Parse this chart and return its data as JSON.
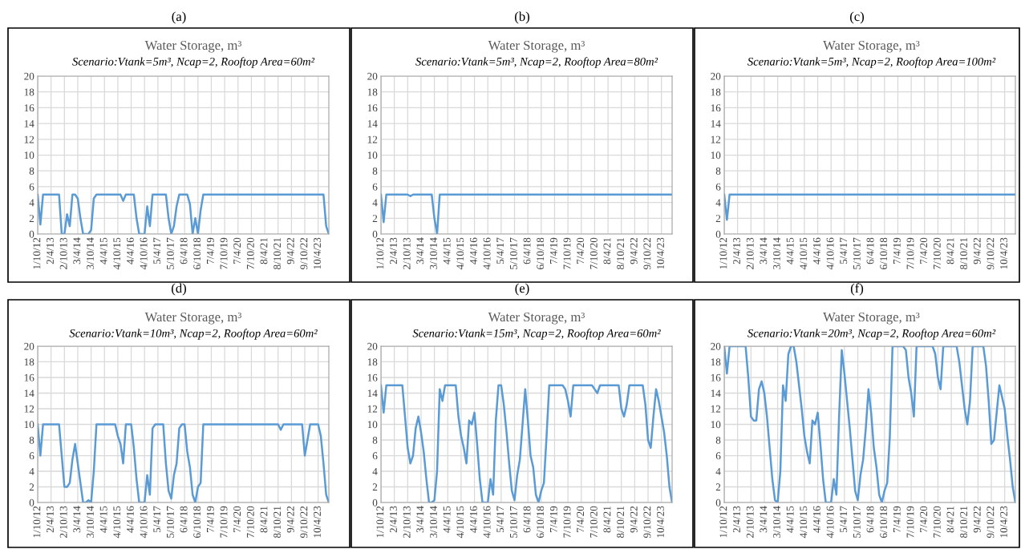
{
  "chart_data": [
    {
      "type": "line",
      "title": "Water Storage, m³",
      "subtitle": "Scenario:Vtank=5m³, Ncap=2, Rooftop Area=60m²",
      "annotations": [
        "(a)"
      ],
      "categories": [
        "1/10/12",
        null,
        null,
        null,
        null,
        "2/4/13",
        null,
        null,
        null,
        null,
        "2/10/13",
        null,
        null,
        null,
        null,
        "3/4/14",
        null,
        null,
        null,
        null,
        "3/10/14",
        null,
        null,
        null,
        null,
        "4/4/15",
        null,
        null,
        null,
        null,
        "4/10/15",
        null,
        null,
        null,
        null,
        "4/4/16",
        null,
        null,
        null,
        null,
        "4/10/16",
        null,
        null,
        null,
        null,
        "5/4/17",
        null,
        null,
        null,
        null,
        "5/10/17",
        null,
        null,
        null,
        null,
        "6/4/18",
        null,
        null,
        null,
        null,
        "6/10/18",
        null,
        null,
        null,
        null,
        "7/4/19",
        null,
        null,
        null,
        null,
        "7/10/19",
        null,
        null,
        null,
        null,
        "7/4/20",
        null,
        null,
        null,
        null,
        "7/10/20",
        null,
        null,
        null,
        null,
        "8/4/21",
        null,
        null,
        null,
        null,
        "8/10/21",
        null,
        null,
        null,
        null,
        "9/4/22",
        null,
        null,
        null,
        null,
        "9/10/22",
        null,
        null,
        null,
        null,
        "10/4/23",
        null,
        null,
        null,
        null
      ],
      "series": [
        {
          "color": "#5b9bd5",
          "values": [
            5,
            1.2,
            5,
            5,
            5,
            5,
            5,
            5,
            5,
            0,
            0,
            2.5,
            1,
            5,
            5,
            4.5,
            2,
            0,
            0,
            0,
            0.5,
            4.5,
            5,
            5,
            5,
            5,
            5,
            5,
            5,
            5,
            5,
            5,
            4.2,
            5,
            5,
            5,
            5,
            2,
            0,
            0,
            0,
            3.5,
            1,
            5,
            5,
            5,
            5,
            5,
            5,
            2,
            0,
            1,
            3.5,
            5,
            5,
            5,
            5,
            3.8,
            0,
            2,
            0,
            3,
            5,
            5,
            5,
            5,
            5,
            5,
            5,
            5,
            5,
            5,
            5,
            5,
            5,
            5,
            5,
            5,
            5,
            5,
            5,
            5,
            5,
            5,
            5,
            5,
            5,
            5,
            5,
            5,
            5,
            5,
            5,
            5,
            5,
            5,
            5,
            5,
            5,
            5,
            5,
            5,
            5,
            5,
            5,
            5,
            5,
            5,
            1,
            0
          ]
        }
      ],
      "ylim": [
        0,
        20
      ],
      "yticks": [
        0,
        2,
        4,
        6,
        8,
        10,
        12,
        14,
        16,
        18,
        20
      ],
      "grid": true
    },
    {
      "type": "line",
      "title": "Water Storage, m³",
      "subtitle": "Scenario:Vtank=5m³, Ncap=2, Rooftop Area=80m²",
      "annotations": [
        "(b)"
      ],
      "categories": [
        "1/10/12",
        null,
        null,
        null,
        null,
        "2/4/13",
        null,
        null,
        null,
        null,
        "2/10/13",
        null,
        null,
        null,
        null,
        "3/4/14",
        null,
        null,
        null,
        null,
        "3/10/14",
        null,
        null,
        null,
        null,
        "4/4/15",
        null,
        null,
        null,
        null,
        "4/10/15",
        null,
        null,
        null,
        null,
        "4/4/16",
        null,
        null,
        null,
        null,
        "4/10/16",
        null,
        null,
        null,
        null,
        "5/4/17",
        null,
        null,
        null,
        null,
        "5/10/17",
        null,
        null,
        null,
        null,
        "6/4/18",
        null,
        null,
        null,
        null,
        "6/10/18",
        null,
        null,
        null,
        null,
        "7/4/19",
        null,
        null,
        null,
        null,
        "7/10/19",
        null,
        null,
        null,
        null,
        "7/4/20",
        null,
        null,
        null,
        null,
        "7/10/20",
        null,
        null,
        null,
        null,
        "8/4/21",
        null,
        null,
        null,
        null,
        "8/10/21",
        null,
        null,
        null,
        null,
        "9/4/22",
        null,
        null,
        null,
        null,
        "9/10/22",
        null,
        null,
        null,
        null,
        "10/4/23",
        null,
        null,
        null,
        null
      ],
      "series": [
        {
          "color": "#5b9bd5",
          "values": [
            5,
            1.5,
            5,
            5,
            5,
            5,
            5,
            5,
            5,
            5,
            5,
            4.8,
            5,
            5,
            5,
            5,
            5,
            5,
            5,
            5,
            2,
            0,
            5,
            5,
            5,
            5,
            5,
            5,
            5,
            5,
            5,
            5,
            5,
            5,
            5,
            5,
            5,
            5,
            5,
            5,
            5,
            5,
            5,
            5,
            5,
            5,
            5,
            5,
            5,
            5,
            5,
            5,
            5,
            5,
            5,
            5,
            5,
            5,
            5,
            5,
            5,
            5,
            5,
            5,
            5,
            5,
            5,
            5,
            5,
            5,
            5,
            5,
            5,
            5,
            5,
            5,
            5,
            5,
            5,
            5,
            5,
            5,
            5,
            5,
            5,
            5,
            5,
            5,
            5,
            5,
            5,
            5,
            5,
            5,
            5,
            5,
            5,
            5,
            5,
            5,
            5,
            5,
            5,
            5,
            5,
            5,
            5,
            5,
            5,
            5
          ]
        }
      ],
      "ylim": [
        0,
        20
      ],
      "yticks": [
        0,
        2,
        4,
        6,
        8,
        10,
        12,
        14,
        16,
        18,
        20
      ],
      "grid": true
    },
    {
      "type": "line",
      "title": "Water Storage, m³",
      "subtitle": "Scenario:Vtank=5m³, Ncap=2, Rooftop Area=100m²",
      "annotations": [
        "(c)"
      ],
      "categories": [
        "1/10/12",
        null,
        null,
        null,
        null,
        "2/4/13",
        null,
        null,
        null,
        null,
        "2/10/13",
        null,
        null,
        null,
        null,
        "3/4/14",
        null,
        null,
        null,
        null,
        "3/10/14",
        null,
        null,
        null,
        null,
        "4/4/15",
        null,
        null,
        null,
        null,
        "4/10/15",
        null,
        null,
        null,
        null,
        "4/4/16",
        null,
        null,
        null,
        null,
        "4/10/16",
        null,
        null,
        null,
        null,
        "5/4/17",
        null,
        null,
        null,
        null,
        "5/10/17",
        null,
        null,
        null,
        null,
        "6/4/18",
        null,
        null,
        null,
        null,
        "6/10/18",
        null,
        null,
        null,
        null,
        "7/4/19",
        null,
        null,
        null,
        null,
        "7/10/19",
        null,
        null,
        null,
        null,
        "7/4/20",
        null,
        null,
        null,
        null,
        "7/10/20",
        null,
        null,
        null,
        null,
        "8/4/21",
        null,
        null,
        null,
        null,
        "8/10/21",
        null,
        null,
        null,
        null,
        "9/4/22",
        null,
        null,
        null,
        null,
        "9/10/22",
        null,
        null,
        null,
        null,
        "10/4/23",
        null,
        null,
        null,
        null
      ],
      "series": [
        {
          "color": "#5b9bd5",
          "values": [
            5,
            1.8,
            5,
            5,
            5,
            5,
            5,
            5,
            5,
            5,
            5,
            5,
            5,
            5,
            5,
            5,
            5,
            5,
            5,
            5,
            5,
            5,
            5,
            5,
            5,
            5,
            5,
            5,
            5,
            5,
            5,
            5,
            5,
            5,
            5,
            5,
            5,
            5,
            5,
            5,
            5,
            5,
            5,
            5,
            5,
            5,
            5,
            5,
            5,
            5,
            5,
            5,
            5,
            5,
            5,
            5,
            5,
            5,
            5,
            5,
            5,
            5,
            5,
            5,
            5,
            5,
            5,
            5,
            5,
            5,
            5,
            5,
            5,
            5,
            5,
            5,
            5,
            5,
            5,
            5,
            5,
            5,
            5,
            5,
            5,
            5,
            5,
            5,
            5,
            5,
            5,
            5,
            5,
            5,
            5,
            5,
            5,
            5,
            5,
            5,
            5,
            5,
            5,
            5,
            5,
            5,
            5,
            5,
            5,
            5
          ]
        }
      ],
      "ylim": [
        0,
        20
      ],
      "yticks": [
        0,
        2,
        4,
        6,
        8,
        10,
        12,
        14,
        16,
        18,
        20
      ],
      "grid": true
    },
    {
      "type": "line",
      "title": "Water Storage, m³",
      "subtitle": "Scenario:Vtank=10m³, Ncap=2, Rooftop Area=60m²",
      "annotations": [
        "(d)"
      ],
      "categories": [
        "1/10/12",
        null,
        null,
        null,
        null,
        "2/4/13",
        null,
        null,
        null,
        null,
        "2/10/13",
        null,
        null,
        null,
        null,
        "3/4/14",
        null,
        null,
        null,
        null,
        "3/10/14",
        null,
        null,
        null,
        null,
        "4/4/15",
        null,
        null,
        null,
        null,
        "4/10/15",
        null,
        null,
        null,
        null,
        "4/4/16",
        null,
        null,
        null,
        null,
        "4/10/16",
        null,
        null,
        null,
        null,
        "5/4/17",
        null,
        null,
        null,
        null,
        "5/10/17",
        null,
        null,
        null,
        null,
        "6/4/18",
        null,
        null,
        null,
        null,
        "6/10/18",
        null,
        null,
        null,
        null,
        "7/4/19",
        null,
        null,
        null,
        null,
        "7/10/19",
        null,
        null,
        null,
        null,
        "7/4/20",
        null,
        null,
        null,
        null,
        "7/10/20",
        null,
        null,
        null,
        null,
        "8/4/21",
        null,
        null,
        null,
        null,
        "8/10/21",
        null,
        null,
        null,
        null,
        "9/4/22",
        null,
        null,
        null,
        null,
        "9/10/22",
        null,
        null,
        null,
        null,
        "10/4/23",
        null,
        null,
        null,
        null
      ],
      "series": [
        {
          "color": "#5b9bd5",
          "values": [
            10,
            6,
            10,
            10,
            10,
            10,
            10,
            10,
            10,
            6,
            2,
            2,
            2.5,
            5.5,
            7.5,
            5,
            2.5,
            0,
            0,
            0.3,
            0,
            4,
            10,
            10,
            10,
            10,
            10,
            10,
            10,
            10,
            8.5,
            7.5,
            5,
            10,
            10,
            10,
            7,
            3,
            0,
            0,
            0,
            3.5,
            1,
            9.5,
            10,
            10,
            10,
            10,
            5,
            1.5,
            0.5,
            3.5,
            5,
            9.5,
            10,
            10,
            6.5,
            4.5,
            1,
            0,
            2,
            2.5,
            10,
            10,
            10,
            10,
            10,
            10,
            10,
            10,
            10,
            10,
            10,
            10,
            10,
            10,
            10,
            10,
            10,
            10,
            10,
            10,
            10,
            10,
            10,
            10,
            10,
            10,
            10,
            10,
            10,
            9.3,
            10,
            10,
            10,
            10,
            10,
            10,
            10,
            10,
            6,
            8,
            10,
            10,
            10,
            10,
            8.5,
            5,
            1,
            0
          ]
        }
      ],
      "ylim": [
        0,
        20
      ],
      "yticks": [
        0,
        2,
        4,
        6,
        8,
        10,
        12,
        14,
        16,
        18,
        20
      ],
      "grid": true
    },
    {
      "type": "line",
      "title": "Water Storage, m³",
      "subtitle": "Scenario:Vtank=15m³, Ncap=2, Rooftop Area=60m²",
      "annotations": [
        "(e)"
      ],
      "categories": [
        "1/10/12",
        null,
        null,
        null,
        null,
        "2/4/13",
        null,
        null,
        null,
        null,
        "2/10/13",
        null,
        null,
        null,
        null,
        "3/4/14",
        null,
        null,
        null,
        null,
        "3/10/14",
        null,
        null,
        null,
        null,
        "4/4/15",
        null,
        null,
        null,
        null,
        "4/10/15",
        null,
        null,
        null,
        null,
        "4/4/16",
        null,
        null,
        null,
        null,
        "4/10/16",
        null,
        null,
        null,
        null,
        "5/4/17",
        null,
        null,
        null,
        null,
        "5/10/17",
        null,
        null,
        null,
        null,
        "6/4/18",
        null,
        null,
        null,
        null,
        "6/10/18",
        null,
        null,
        null,
        null,
        "7/4/19",
        null,
        null,
        null,
        null,
        "7/10/19",
        null,
        null,
        null,
        null,
        "7/4/20",
        null,
        null,
        null,
        null,
        "7/10/20",
        null,
        null,
        null,
        null,
        "8/4/21",
        null,
        null,
        null,
        null,
        "8/10/21",
        null,
        null,
        null,
        null,
        "9/4/22",
        null,
        null,
        null,
        null,
        "9/10/22",
        null,
        null,
        null,
        null,
        "10/4/23",
        null,
        null,
        null,
        null
      ],
      "series": [
        {
          "color": "#5b9bd5",
          "values": [
            15,
            11.5,
            15,
            15,
            15,
            15,
            15,
            15,
            15,
            11,
            7,
            5,
            6,
            9.5,
            11,
            9,
            6.5,
            3,
            0,
            0,
            0.3,
            4,
            14.5,
            13,
            15,
            15,
            15,
            15,
            15,
            11,
            8.5,
            7,
            5,
            10.5,
            10,
            11.5,
            7.5,
            3,
            0,
            0,
            0,
            3,
            1,
            10.5,
            15,
            15,
            12.5,
            9,
            5,
            1.5,
            0.3,
            3.5,
            5.5,
            10,
            14.5,
            10.5,
            6,
            4.5,
            1,
            0,
            1.5,
            2.5,
            8.5,
            15,
            15,
            15,
            15,
            15,
            15,
            14.5,
            13,
            11,
            15,
            15,
            15,
            15,
            15,
            15,
            15,
            15,
            14.5,
            14,
            15,
            15,
            15,
            15,
            15,
            15,
            15,
            15,
            12,
            11,
            12.5,
            15,
            15,
            15,
            15,
            15,
            15,
            12.5,
            8,
            7,
            11,
            14.5,
            13,
            11,
            9,
            6,
            2,
            0
          ]
        }
      ],
      "ylim": [
        0,
        20
      ],
      "yticks": [
        0,
        2,
        4,
        6,
        8,
        10,
        12,
        14,
        16,
        18,
        20
      ],
      "grid": true
    },
    {
      "type": "line",
      "title": "Water Storage, m³",
      "subtitle": "Scenario:Vtank=20m³, Ncap=2, Rooftop Area=60m²",
      "annotations": [
        "(f)"
      ],
      "categories": [
        "1/10/12",
        null,
        null,
        null,
        null,
        "2/4/13",
        null,
        null,
        null,
        null,
        "2/10/13",
        null,
        null,
        null,
        null,
        "3/4/14",
        null,
        null,
        null,
        null,
        "3/10/14",
        null,
        null,
        null,
        null,
        "4/4/15",
        null,
        null,
        null,
        null,
        "4/10/15",
        null,
        null,
        null,
        null,
        "4/4/16",
        null,
        null,
        null,
        null,
        "4/10/16",
        null,
        null,
        null,
        null,
        "5/4/17",
        null,
        null,
        null,
        null,
        "5/10/17",
        null,
        null,
        null,
        null,
        "6/4/18",
        null,
        null,
        null,
        null,
        "6/10/18",
        null,
        null,
        null,
        null,
        "7/4/19",
        null,
        null,
        null,
        null,
        "7/10/19",
        null,
        null,
        null,
        null,
        "7/4/20",
        null,
        null,
        null,
        null,
        "7/10/20",
        null,
        null,
        null,
        null,
        "8/4/21",
        null,
        null,
        null,
        null,
        "8/10/21",
        null,
        null,
        null,
        null,
        "9/4/22",
        null,
        null,
        null,
        null,
        "9/10/22",
        null,
        null,
        null,
        null,
        "10/4/23",
        null,
        null,
        null,
        null
      ],
      "series": [
        {
          "color": "#5b9bd5",
          "values": [
            20,
            16.5,
            20,
            20,
            20,
            20,
            20,
            20,
            20,
            16,
            11,
            10.5,
            10.5,
            14.5,
            15.5,
            14,
            11,
            7,
            3,
            0.3,
            0,
            4,
            15,
            13,
            19,
            20,
            20,
            18,
            15,
            12,
            8.5,
            6.5,
            5,
            10.5,
            10,
            11.5,
            7.5,
            3,
            0,
            0,
            0,
            3,
            1,
            11,
            19.5,
            16.5,
            13,
            9.5,
            5.5,
            1.5,
            0.3,
            3.5,
            5.5,
            9.5,
            14.5,
            11.5,
            7,
            4.5,
            1,
            0,
            1.5,
            2.5,
            8.5,
            20,
            20,
            20,
            20,
            20,
            19.5,
            16,
            14,
            11,
            20,
            20,
            20,
            20,
            20,
            20,
            20,
            19,
            16,
            14.5,
            20,
            20,
            20,
            20,
            20,
            20,
            18,
            15,
            12,
            10,
            13,
            20,
            20,
            20,
            20,
            20,
            17.5,
            13,
            7.5,
            8,
            11.5,
            15,
            13.5,
            12,
            8.5,
            5.5,
            2,
            0
          ]
        }
      ],
      "ylim": [
        0,
        20
      ],
      "yticks": [
        0,
        2,
        4,
        6,
        8,
        10,
        12,
        14,
        16,
        18,
        20
      ],
      "grid": true
    }
  ]
}
